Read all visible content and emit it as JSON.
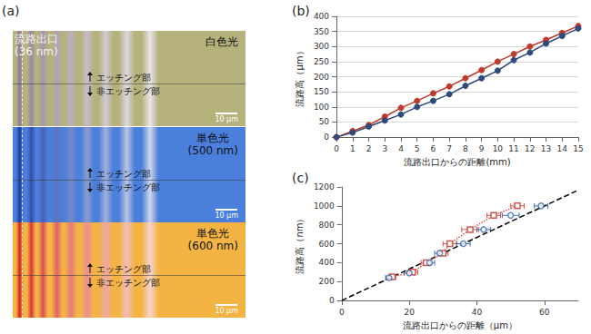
{
  "image_panel": {
    "label": "(a)",
    "exit_label": [
      "流路出口",
      "(36 nm)"
    ],
    "sections": [
      {
        "title": [
          "白色光"
        ],
        "upper": "エッチング部",
        "lower": "非エッチング部",
        "scale_bar": "10 μm",
        "color": "#b5b27c"
      },
      {
        "title": [
          "単色光",
          "(500 nm)"
        ],
        "upper": "エッチング部",
        "lower": "非エッチング部",
        "scale_bar": "10 μm",
        "color": "#4a7fdc"
      },
      {
        "title": [
          "単色光",
          "(600 nm)"
        ],
        "upper": "エッチング部",
        "lower": "非エッチング部",
        "scale_bar": "10 μm",
        "color": "#f4b443"
      }
    ]
  },
  "chart_data": [
    {
      "type": "line",
      "title": "(b)",
      "x_label": "流路出口からの距離(mm)",
      "y_label": "流路高（μm）",
      "x": [
        0,
        1,
        2,
        3,
        4,
        5,
        6,
        7,
        8,
        9,
        10,
        11,
        12,
        13,
        14,
        15
      ],
      "xlim": [
        0,
        15
      ],
      "xticks": [
        0,
        1,
        2,
        3,
        4,
        5,
        6,
        7,
        8,
        9,
        10,
        11,
        12,
        13,
        14,
        15
      ],
      "ylim": [
        0,
        400
      ],
      "yticks": [
        0,
        50,
        100,
        150,
        200,
        250,
        300,
        350,
        400
      ],
      "grid": true,
      "series": [
        {
          "color": "#c0392b",
          "marker": "circle",
          "values": [
            0,
            20,
            40,
            68,
            97,
            120,
            145,
            168,
            195,
            222,
            250,
            275,
            300,
            322,
            345,
            368
          ]
        },
        {
          "color": "#2e4a7a",
          "marker": "circle",
          "values": [
            0,
            15,
            35,
            55,
            75,
            100,
            120,
            142,
            170,
            195,
            220,
            255,
            280,
            310,
            335,
            360
          ]
        }
      ]
    },
    {
      "type": "scatter",
      "title": "(c)",
      "x_label": "流路出口からの距離（μm）",
      "y_label": "流路高（nm）",
      "xlim": [
        0,
        70
      ],
      "xticks": [
        0,
        20,
        40,
        60
      ],
      "ylim": [
        0,
        1200
      ],
      "yticks": [
        0,
        200,
        400,
        600,
        800,
        1000,
        1200
      ],
      "grid": false,
      "series": [
        {
          "type": "line",
          "color": "#d9534f",
          "marker": "square",
          "line_style": "dotted",
          "x": [
            15,
            21,
            25,
            30,
            32,
            38,
            45,
            52
          ],
          "values": [
            250,
            300,
            400,
            500,
            600,
            750,
            900,
            1000
          ],
          "x_err": [
            1,
            1.5,
            1.5,
            1.5,
            2,
            2.5,
            2,
            2
          ]
        },
        {
          "type": "scatter",
          "color": "#3b6db3",
          "marker": "circle",
          "x": [
            14,
            20,
            26,
            29,
            36,
            42,
            50,
            59
          ],
          "values": [
            240,
            290,
            400,
            500,
            600,
            750,
            900,
            1000
          ],
          "x_err": [
            1,
            1.5,
            1.5,
            1.5,
            2,
            2,
            2.5,
            2
          ]
        },
        {
          "type": "line",
          "color": "#000000",
          "marker": "none",
          "line_style": "dashed",
          "x": [
            0,
            70
          ],
          "values": [
            0,
            1167
          ]
        }
      ]
    }
  ]
}
